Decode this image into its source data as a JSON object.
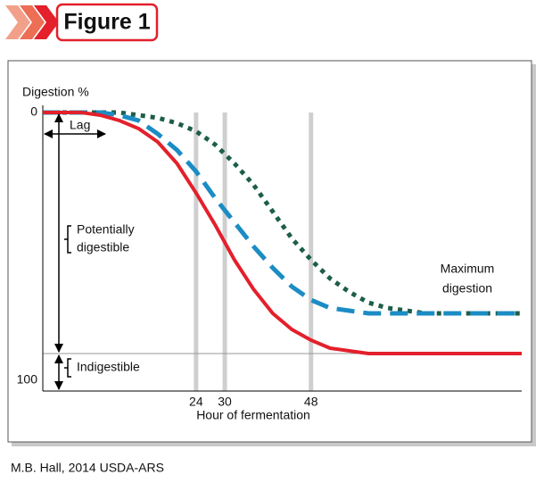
{
  "header": {
    "title": "Figure 1"
  },
  "footer": {
    "credit": "M.B. Hall, 2014 USDA-ARS"
  },
  "chart_data": {
    "type": "line",
    "y_label": "Digestion %",
    "x_label": "Hour of fermentation",
    "x": [
      -8,
      0,
      4,
      8,
      12,
      16,
      20,
      24,
      28,
      32,
      36,
      40,
      44,
      48,
      52,
      56,
      60,
      64,
      72,
      80,
      92
    ],
    "xlim": [
      -8,
      92
    ],
    "xticks": [
      24,
      30,
      48
    ],
    "ylim": [
      0,
      100
    ],
    "yticks": [
      0,
      100
    ],
    "y_inverted": true,
    "x_grid": true,
    "reference_line": 90,
    "series": [
      {
        "color": "#1d5e48",
        "style": "dotted",
        "values": [
          0,
          0,
          0,
          0,
          1,
          2,
          4,
          7,
          12,
          19,
          27,
          37,
          47,
          55,
          62,
          67,
          71,
          73,
          75,
          75,
          75
        ]
      },
      {
        "color": "#1b8cc4",
        "style": "dashed",
        "values": [
          0,
          0,
          0,
          1,
          3,
          8,
          14,
          22,
          32,
          41,
          50,
          58,
          65,
          70,
          73,
          74,
          75,
          75,
          75,
          75,
          75
        ]
      },
      {
        "color": "#e3202b",
        "style": "solid",
        "values": [
          0,
          0,
          1,
          3,
          6,
          11,
          19,
          30,
          42,
          55,
          66,
          75,
          81,
          85,
          88,
          89,
          90,
          90,
          90,
          90,
          90
        ]
      }
    ],
    "annotations": {
      "lag": "Lag",
      "potentially_digestible": [
        "Potentially",
        "digestible"
      ],
      "indigestible": "Indigestible",
      "maximum_digestion": [
        "Maximum",
        "digestion"
      ]
    }
  }
}
